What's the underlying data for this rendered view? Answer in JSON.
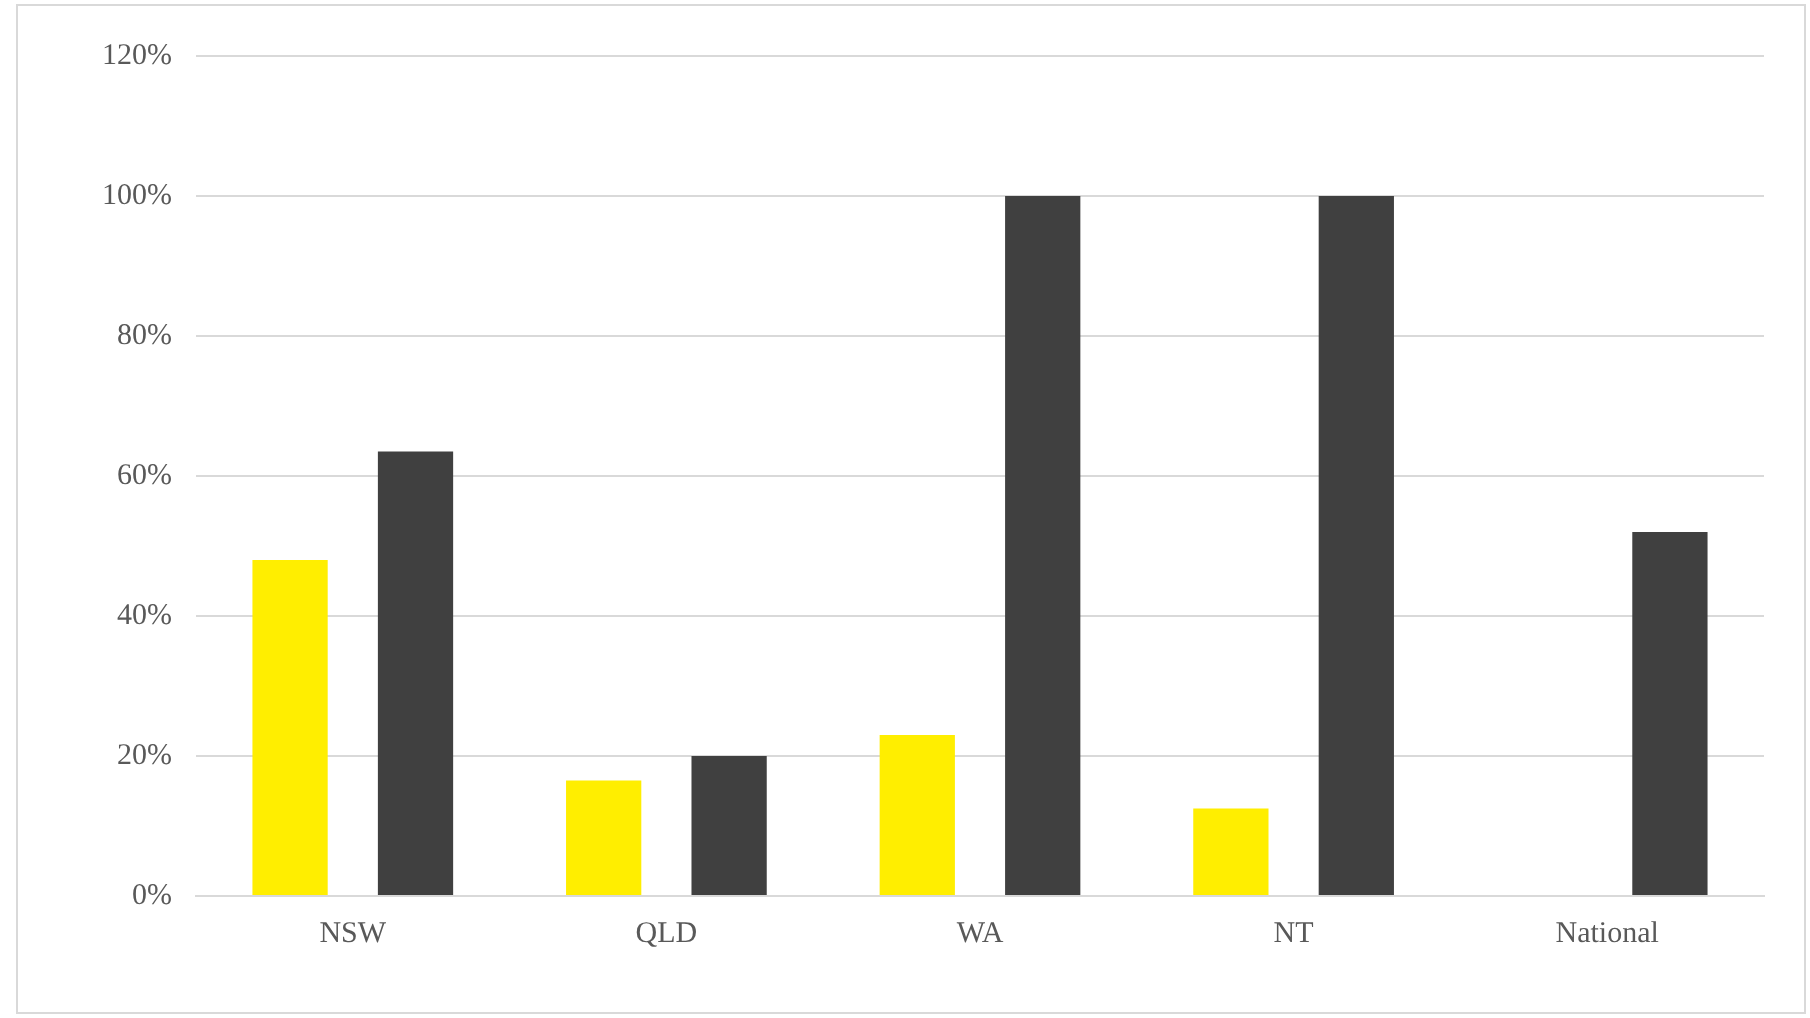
{
  "chart_data": {
    "type": "bar",
    "categories": [
      "NSW",
      "QLD",
      "WA",
      "NT",
      "National"
    ],
    "series": [
      {
        "color": "#ffee00",
        "values": [
          48,
          16.5,
          23,
          12.5,
          null
        ]
      },
      {
        "color": "#404040",
        "values": [
          63.5,
          20,
          100,
          100,
          52
        ]
      }
    ],
    "ylim": [
      0,
      120
    ],
    "yticks": [
      {
        "value": 0,
        "label": "0%"
      },
      {
        "value": 20,
        "label": "20%"
      },
      {
        "value": 40,
        "label": "40%"
      },
      {
        "value": 60,
        "label": "60%"
      },
      {
        "value": 80,
        "label": "80%"
      },
      {
        "value": 100,
        "label": "100%"
      },
      {
        "value": 120,
        "label": "120%"
      }
    ],
    "grid": "y",
    "legend": false
  }
}
